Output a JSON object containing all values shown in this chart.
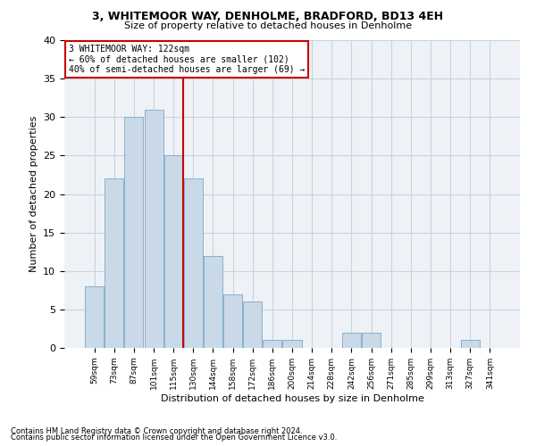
{
  "title1": "3, WHITEMOOR WAY, DENHOLME, BRADFORD, BD13 4EH",
  "title2": "Size of property relative to detached houses in Denholme",
  "xlabel": "Distribution of detached houses by size in Denholme",
  "ylabel": "Number of detached properties",
  "bin_labels": [
    "59sqm",
    "73sqm",
    "87sqm",
    "101sqm",
    "115sqm",
    "130sqm",
    "144sqm",
    "158sqm",
    "172sqm",
    "186sqm",
    "200sqm",
    "214sqm",
    "228sqm",
    "242sqm",
    "256sqm",
    "271sqm",
    "285sqm",
    "299sqm",
    "313sqm",
    "327sqm",
    "341sqm"
  ],
  "bar_values": [
    8,
    22,
    30,
    31,
    25,
    22,
    12,
    7,
    6,
    1,
    1,
    0,
    0,
    2,
    2,
    0,
    0,
    0,
    0,
    1,
    0
  ],
  "bar_color": "#c9d9e8",
  "bar_edge_color": "#8ab0cc",
  "property_line_x": 4.5,
  "vline_color": "#cc0000",
  "annotation_line1": "3 WHITEMOOR WAY: 122sqm",
  "annotation_line2": "← 60% of detached houses are smaller (102)",
  "annotation_line3": "40% of semi-detached houses are larger (69) →",
  "annotation_box_color": "#ffffff",
  "annotation_box_edge": "#cc0000",
  "ylim": [
    0,
    40
  ],
  "yticks": [
    0,
    5,
    10,
    15,
    20,
    25,
    30,
    35,
    40
  ],
  "footnote1": "Contains HM Land Registry data © Crown copyright and database right 2024.",
  "footnote2": "Contains public sector information licensed under the Open Government Licence v3.0.",
  "grid_color": "#c8d4de",
  "background_color": "#eef2f6"
}
